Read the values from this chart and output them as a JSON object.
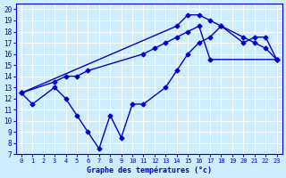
{
  "xlabel": "Graphe des températures (°c)",
  "bg_color": "#cceeff",
  "grid_color": "#aaddee",
  "line_color": "#0000cc",
  "xlim": [
    -0.5,
    23.5
  ],
  "ylim": [
    7,
    20.5
  ],
  "xticks": [
    0,
    1,
    2,
    3,
    4,
    5,
    6,
    7,
    8,
    9,
    10,
    11,
    12,
    13,
    14,
    15,
    16,
    17,
    18,
    19,
    20,
    21,
    22,
    23
  ],
  "yticks": [
    7,
    8,
    9,
    10,
    11,
    12,
    13,
    14,
    15,
    16,
    17,
    18,
    19,
    20
  ],
  "line1_x": [
    0,
    1,
    3,
    4,
    5,
    6,
    7,
    8,
    9,
    10,
    11,
    13,
    14,
    15,
    16,
    17,
    18,
    20,
    21,
    22,
    23
  ],
  "line1_y": [
    12.5,
    11.5,
    13.0,
    12.0,
    10.5,
    9.0,
    7.5,
    10.5,
    8.5,
    11.5,
    11.5,
    13.0,
    14.5,
    16.0,
    17.0,
    17.5,
    18.5,
    17.5,
    17.0,
    16.5,
    15.5
  ],
  "line2_x": [
    0,
    3,
    4,
    5,
    6,
    11,
    12,
    13,
    14,
    15,
    16,
    17,
    23
  ],
  "line2_y": [
    12.5,
    13.5,
    14.0,
    14.0,
    14.5,
    16.0,
    16.5,
    17.0,
    17.5,
    18.0,
    18.5,
    15.5,
    15.5
  ],
  "line3_x": [
    0,
    14,
    15,
    16,
    17,
    18,
    20,
    21,
    22,
    23
  ],
  "line3_y": [
    12.5,
    18.5,
    19.5,
    19.5,
    19.0,
    18.5,
    17.0,
    17.5,
    17.5,
    15.5
  ]
}
